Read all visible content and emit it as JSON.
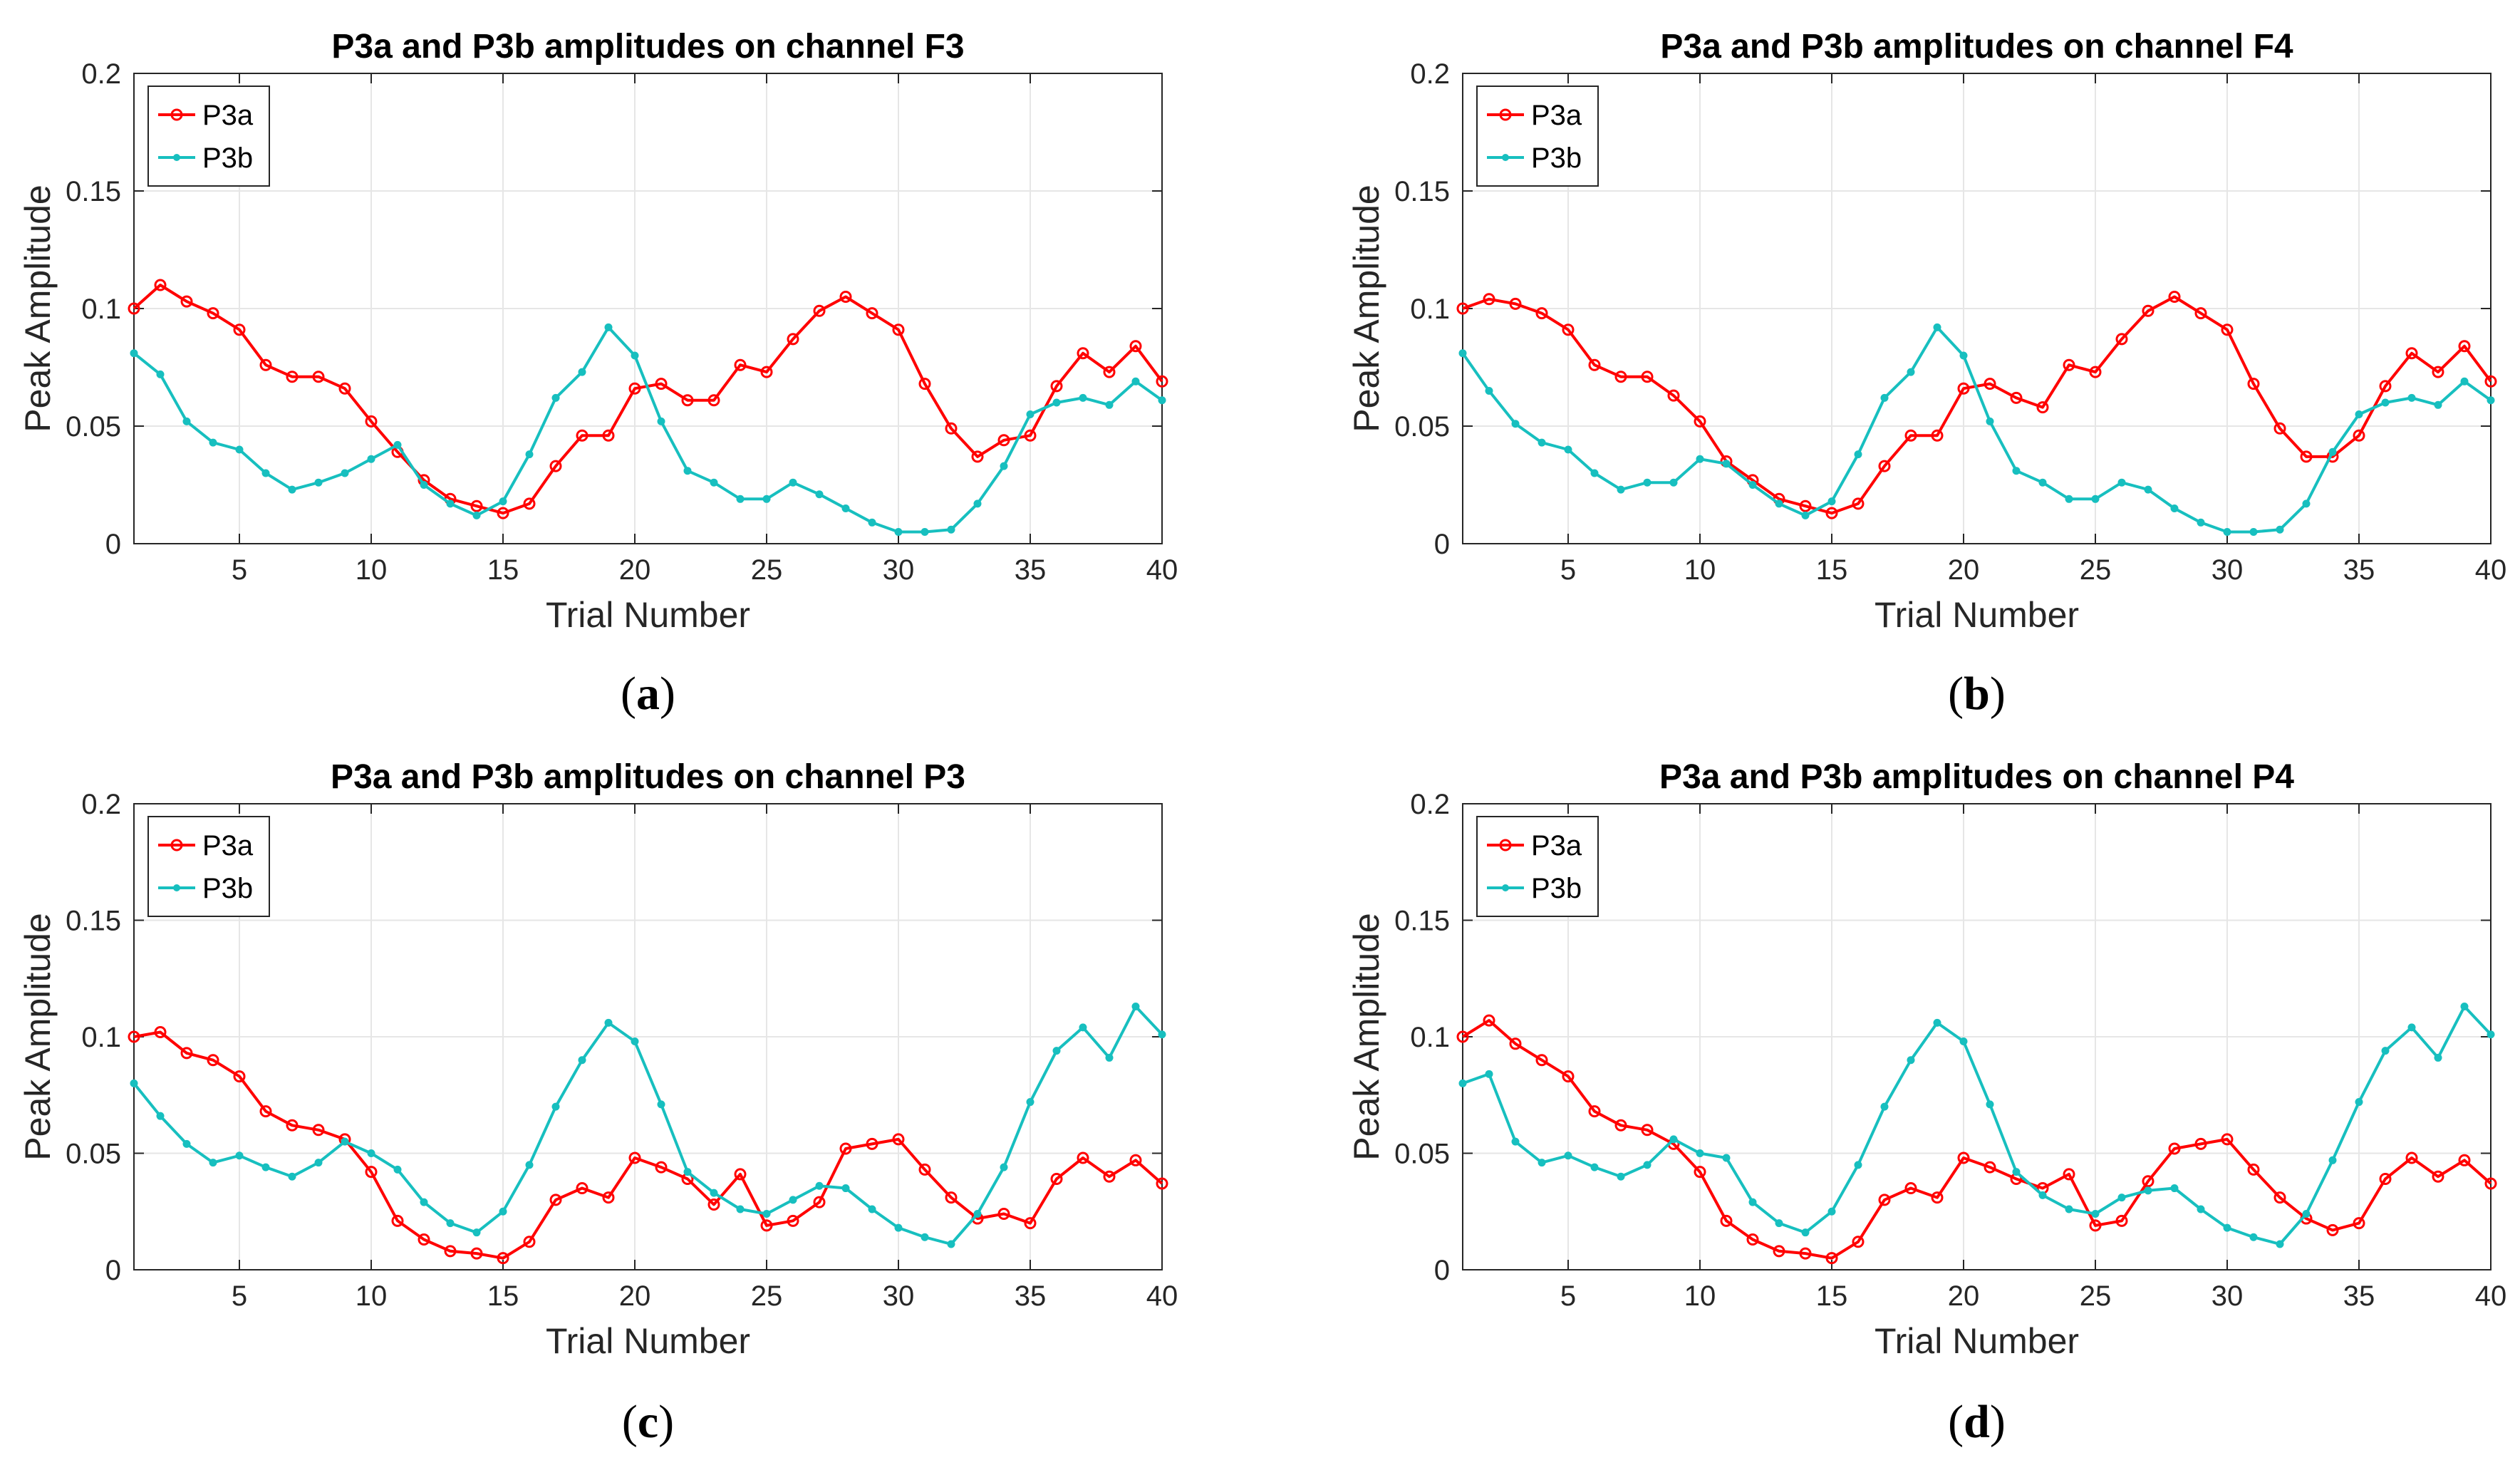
{
  "figure": {
    "captions": [
      "(a)",
      "(b)",
      "(c)",
      "(d)"
    ]
  },
  "chart_data": [
    {
      "type": "line",
      "title": "P3a and P3b amplitudes on channel F3",
      "xlabel": "Trial Number",
      "ylabel": "Peak Amplitude",
      "xlim": [
        1,
        40
      ],
      "ylim": [
        0,
        0.2
      ],
      "xticks": [
        5,
        10,
        15,
        20,
        25,
        30,
        35,
        40
      ],
      "yticks": [
        0,
        0.05,
        0.1,
        0.15,
        0.2
      ],
      "ytick_labels": [
        "0",
        "0.05",
        "0.1",
        "0.15",
        "0.2"
      ],
      "grid": true,
      "legend": "top-left",
      "x": [
        1,
        2,
        3,
        4,
        5,
        6,
        7,
        8,
        9,
        10,
        11,
        12,
        13,
        14,
        15,
        16,
        17,
        18,
        19,
        20,
        21,
        22,
        23,
        24,
        25,
        26,
        27,
        28,
        29,
        30,
        31,
        32,
        33,
        34,
        35,
        36,
        37,
        38,
        39,
        40
      ],
      "series": [
        {
          "name": "P3a",
          "color": "#ff0000",
          "marker": "circle",
          "values": [
            0.1,
            0.11,
            0.103,
            0.098,
            0.091,
            0.076,
            0.071,
            0.071,
            0.066,
            0.052,
            0.039,
            0.027,
            0.019,
            0.016,
            0.013,
            0.017,
            0.033,
            0.046,
            0.046,
            0.066,
            0.068,
            0.061,
            0.061,
            0.076,
            0.073,
            0.087,
            0.099,
            0.105,
            0.098,
            0.091,
            0.068,
            0.049,
            0.037,
            0.044,
            0.046,
            0.067,
            0.081,
            0.073,
            0.084,
            0.069
          ]
        },
        {
          "name": "P3b",
          "color": "#17bfbf",
          "marker": "dot",
          "values": [
            0.081,
            0.072,
            0.052,
            0.043,
            0.04,
            0.03,
            0.023,
            0.026,
            0.03,
            0.036,
            0.042,
            0.025,
            0.017,
            0.012,
            0.018,
            0.038,
            0.062,
            0.073,
            0.092,
            0.08,
            0.052,
            0.031,
            0.026,
            0.019,
            0.019,
            0.026,
            0.021,
            0.015,
            0.009,
            0.005,
            0.005,
            0.006,
            0.017,
            0.033,
            0.055,
            0.06,
            0.062,
            0.059,
            0.069,
            0.061
          ]
        }
      ]
    },
    {
      "type": "line",
      "title": "P3a and P3b amplitudes on channel F4",
      "xlabel": "Trial Number",
      "ylabel": "Peak Amplitude",
      "xlim": [
        1,
        40
      ],
      "ylim": [
        0,
        0.2
      ],
      "xticks": [
        5,
        10,
        15,
        20,
        25,
        30,
        35,
        40
      ],
      "yticks": [
        0,
        0.05,
        0.1,
        0.15,
        0.2
      ],
      "ytick_labels": [
        "0",
        "0.05",
        "0.1",
        "0.15",
        "0.2"
      ],
      "grid": true,
      "legend": "top-left",
      "x": [
        1,
        2,
        3,
        4,
        5,
        6,
        7,
        8,
        9,
        10,
        11,
        12,
        13,
        14,
        15,
        16,
        17,
        18,
        19,
        20,
        21,
        22,
        23,
        24,
        25,
        26,
        27,
        28,
        29,
        30,
        31,
        32,
        33,
        34,
        35,
        36,
        37,
        38,
        39,
        40
      ],
      "series": [
        {
          "name": "P3a",
          "color": "#ff0000",
          "marker": "circle",
          "values": [
            0.1,
            0.104,
            0.102,
            0.098,
            0.091,
            0.076,
            0.071,
            0.071,
            0.063,
            0.052,
            0.035,
            0.027,
            0.019,
            0.016,
            0.013,
            0.017,
            0.033,
            0.046,
            0.046,
            0.066,
            0.068,
            0.062,
            0.058,
            0.076,
            0.073,
            0.087,
            0.099,
            0.105,
            0.098,
            0.091,
            0.068,
            0.049,
            0.037,
            0.037,
            0.046,
            0.067,
            0.081,
            0.073,
            0.084,
            0.069
          ]
        },
        {
          "name": "P3b",
          "color": "#17bfbf",
          "marker": "dot",
          "values": [
            0.081,
            0.065,
            0.051,
            0.043,
            0.04,
            0.03,
            0.023,
            0.026,
            0.026,
            0.036,
            0.034,
            0.025,
            0.017,
            0.012,
            0.018,
            0.038,
            0.062,
            0.073,
            0.092,
            0.08,
            0.052,
            0.031,
            0.026,
            0.019,
            0.019,
            0.026,
            0.023,
            0.015,
            0.009,
            0.005,
            0.005,
            0.006,
            0.017,
            0.039,
            0.055,
            0.06,
            0.062,
            0.059,
            0.069,
            0.061
          ]
        }
      ]
    },
    {
      "type": "line",
      "title": "P3a and P3b amplitudes on channel P3",
      "xlabel": "Trial Number",
      "ylabel": "Peak Amplitude",
      "xlim": [
        1,
        40
      ],
      "ylim": [
        0,
        0.2
      ],
      "xticks": [
        5,
        10,
        15,
        20,
        25,
        30,
        35,
        40
      ],
      "yticks": [
        0,
        0.05,
        0.1,
        0.15,
        0.2
      ],
      "ytick_labels": [
        "0",
        "0.05",
        "0.1",
        "0.15",
        "0.2"
      ],
      "grid": true,
      "legend": "top-left",
      "x": [
        1,
        2,
        3,
        4,
        5,
        6,
        7,
        8,
        9,
        10,
        11,
        12,
        13,
        14,
        15,
        16,
        17,
        18,
        19,
        20,
        21,
        22,
        23,
        24,
        25,
        26,
        27,
        28,
        29,
        30,
        31,
        32,
        33,
        34,
        35,
        36,
        37,
        38,
        39,
        40
      ],
      "series": [
        {
          "name": "P3a",
          "color": "#ff0000",
          "marker": "circle",
          "values": [
            0.1,
            0.102,
            0.093,
            0.09,
            0.083,
            0.068,
            0.062,
            0.06,
            0.056,
            0.042,
            0.021,
            0.013,
            0.008,
            0.007,
            0.005,
            0.012,
            0.03,
            0.035,
            0.031,
            0.048,
            0.044,
            0.039,
            0.028,
            0.041,
            0.019,
            0.021,
            0.029,
            0.052,
            0.054,
            0.056,
            0.043,
            0.031,
            0.022,
            0.024,
            0.02,
            0.039,
            0.048,
            0.04,
            0.047,
            0.037
          ]
        },
        {
          "name": "P3b",
          "color": "#17bfbf",
          "marker": "dot",
          "values": [
            0.08,
            0.066,
            0.054,
            0.046,
            0.049,
            0.044,
            0.04,
            0.046,
            0.055,
            0.05,
            0.043,
            0.029,
            0.02,
            0.016,
            0.025,
            0.045,
            0.07,
            0.09,
            0.106,
            0.098,
            0.071,
            0.042,
            0.033,
            0.026,
            0.024,
            0.03,
            0.036,
            0.035,
            0.026,
            0.018,
            0.014,
            0.011,
            0.024,
            0.044,
            0.072,
            0.094,
            0.104,
            0.091,
            0.113,
            0.101
          ]
        }
      ]
    },
    {
      "type": "line",
      "title": "P3a and P3b amplitudes on channel P4",
      "xlabel": "Trial Number",
      "ylabel": "Peak Amplitude",
      "xlim": [
        1,
        40
      ],
      "ylim": [
        0,
        0.2
      ],
      "xticks": [
        5,
        10,
        15,
        20,
        25,
        30,
        35,
        40
      ],
      "yticks": [
        0,
        0.05,
        0.1,
        0.15,
        0.2
      ],
      "ytick_labels": [
        "0",
        "0.05",
        "0.1",
        "0.15",
        "0.2"
      ],
      "grid": true,
      "legend": "top-left",
      "x": [
        1,
        2,
        3,
        4,
        5,
        6,
        7,
        8,
        9,
        10,
        11,
        12,
        13,
        14,
        15,
        16,
        17,
        18,
        19,
        20,
        21,
        22,
        23,
        24,
        25,
        26,
        27,
        28,
        29,
        30,
        31,
        32,
        33,
        34,
        35,
        36,
        37,
        38,
        39,
        40
      ],
      "series": [
        {
          "name": "P3a",
          "color": "#ff0000",
          "marker": "circle",
          "values": [
            0.1,
            0.107,
            0.097,
            0.09,
            0.083,
            0.068,
            0.062,
            0.06,
            0.054,
            0.042,
            0.021,
            0.013,
            0.008,
            0.007,
            0.005,
            0.012,
            0.03,
            0.035,
            0.031,
            0.048,
            0.044,
            0.039,
            0.035,
            0.041,
            0.019,
            0.021,
            0.038,
            0.052,
            0.054,
            0.056,
            0.043,
            0.031,
            0.022,
            0.017,
            0.02,
            0.039,
            0.048,
            0.04,
            0.047,
            0.037
          ]
        },
        {
          "name": "P3b",
          "color": "#17bfbf",
          "marker": "dot",
          "values": [
            0.08,
            0.084,
            0.055,
            0.046,
            0.049,
            0.044,
            0.04,
            0.045,
            0.056,
            0.05,
            0.048,
            0.029,
            0.02,
            0.016,
            0.025,
            0.045,
            0.07,
            0.09,
            0.106,
            0.098,
            0.071,
            0.042,
            0.032,
            0.026,
            0.024,
            0.031,
            0.034,
            0.035,
            0.026,
            0.018,
            0.014,
            0.011,
            0.024,
            0.047,
            0.072,
            0.094,
            0.104,
            0.091,
            0.113,
            0.101
          ]
        }
      ]
    }
  ]
}
